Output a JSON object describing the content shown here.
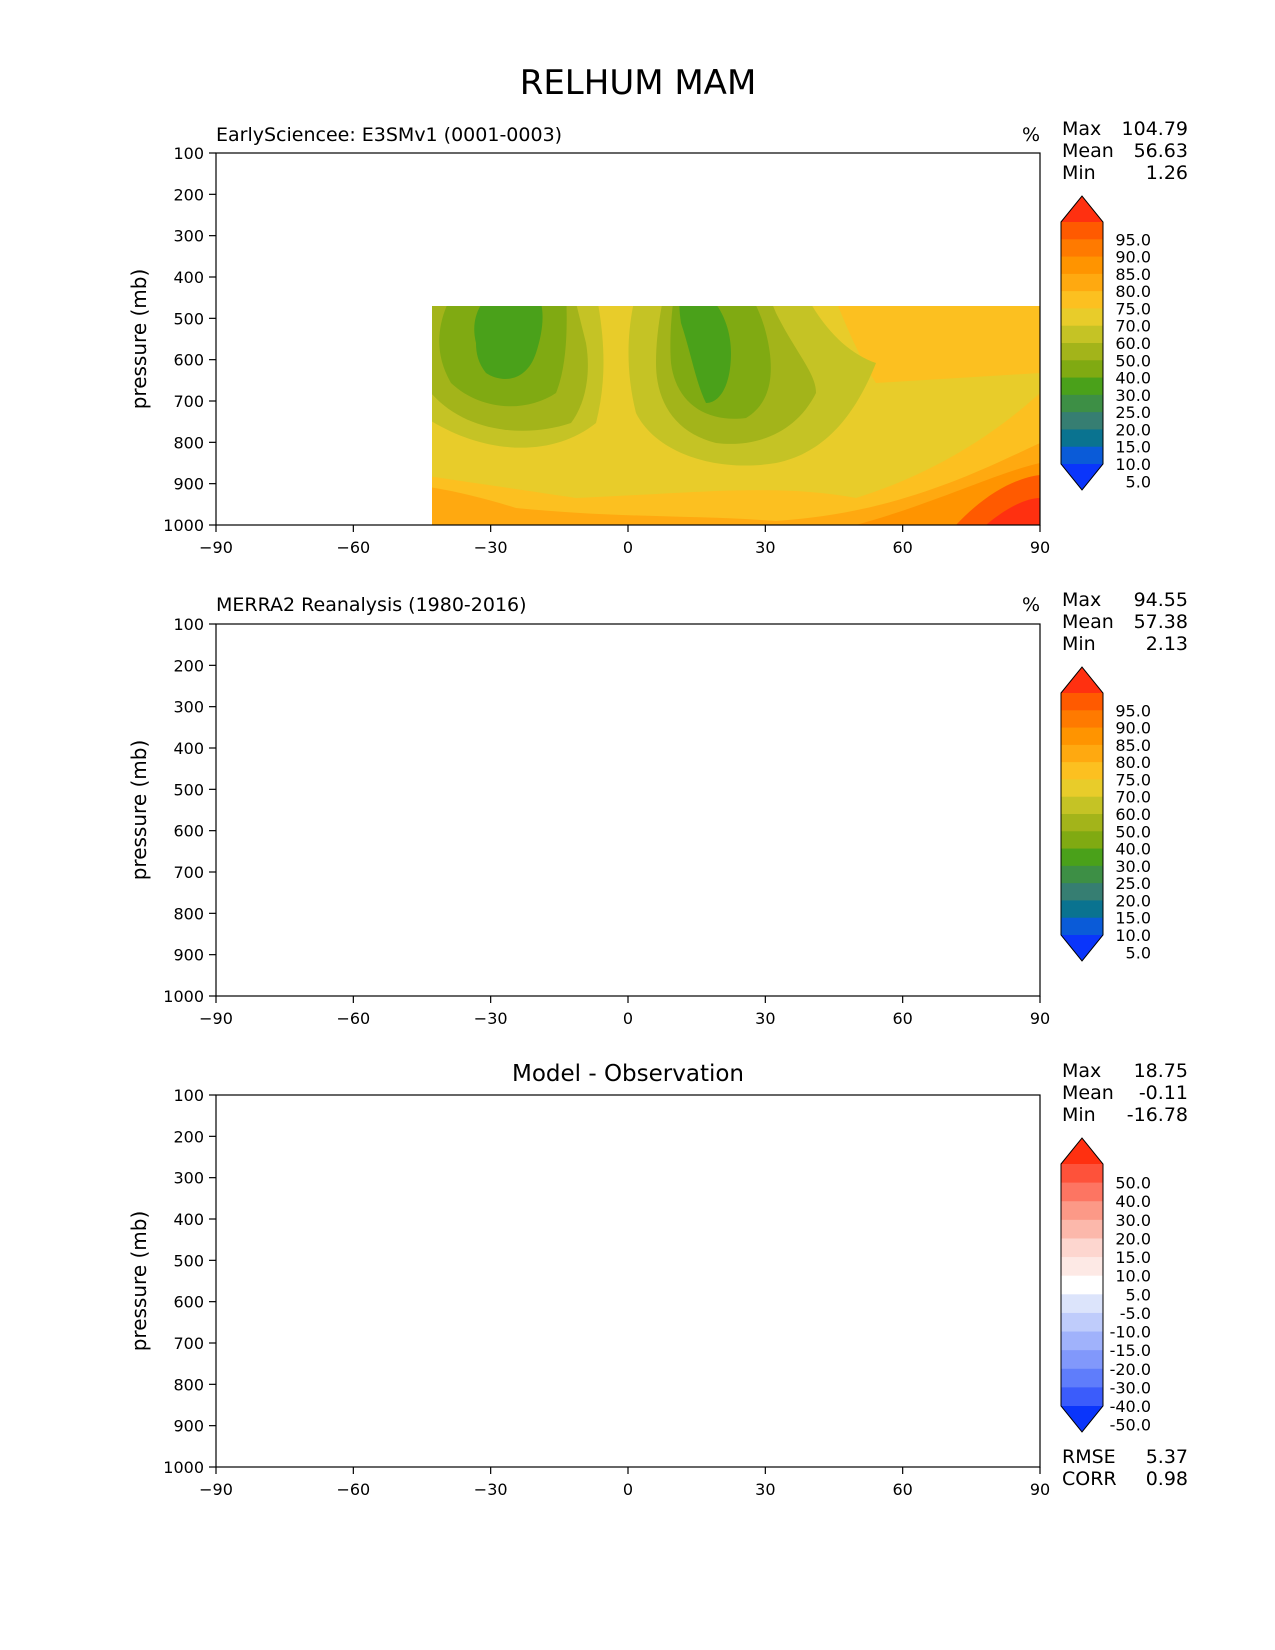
{
  "figure_title": "RELHUM MAM",
  "chart_data": [
    {
      "type": "heatmap",
      "title": "EarlySciencee: E3SMv1 (0001-0003)",
      "units": "%",
      "ylabel": "pressure (mb)",
      "xlabel": "",
      "xlim": [
        -90,
        90
      ],
      "ylim": [
        1000,
        100
      ],
      "x_ticks": [
        "−90",
        "−60",
        "−30",
        "0",
        "30",
        "60",
        "90"
      ],
      "y_ticks": [
        "100",
        "200",
        "300",
        "400",
        "500",
        "600",
        "700",
        "800",
        "900",
        "1000"
      ],
      "stats": [
        {
          "label": "Max",
          "value": "104.79"
        },
        {
          "label": "Mean",
          "value": "56.63"
        },
        {
          "label": "Min",
          "value": "1.26"
        }
      ],
      "colorbar": {
        "labels": [
          "95.0",
          "90.0",
          "85.0",
          "80.0",
          "75.0",
          "70.0",
          "60.0",
          "50.0",
          "40.0",
          "30.0",
          "25.0",
          "20.0",
          "15.0",
          "10.0",
          "5.0"
        ],
        "colors": [
          "#ff3010",
          "#ff5a00",
          "#ff7a00",
          "#ff9400",
          "#ffa910",
          "#fcc020",
          "#e8cc2a",
          "#c5c325",
          "#a3b41a",
          "#80aa12",
          "#4aa11a",
          "#3d8f45",
          "#367e72",
          "#0a7390",
          "#0a5bd8",
          "#0a35fb"
        ]
      },
      "missing_regions": [
        "below 650 mb near 90S",
        "below 870 mb from 87S to 55S"
      ]
    },
    {
      "type": "heatmap",
      "title": "MERRA2 Reanalysis (1980-2016)",
      "units": "%",
      "ylabel": "pressure (mb)",
      "xlabel": "",
      "xlim": [
        -90,
        90
      ],
      "ylim": [
        1000,
        100
      ],
      "x_ticks": [
        "−90",
        "−60",
        "−30",
        "0",
        "30",
        "60",
        "90"
      ],
      "y_ticks": [
        "100",
        "200",
        "300",
        "400",
        "500",
        "600",
        "700",
        "800",
        "900",
        "1000"
      ],
      "stats": [
        {
          "label": "Max",
          "value": "94.55"
        },
        {
          "label": "Mean",
          "value": "57.38"
        },
        {
          "label": "Min",
          "value": "2.13"
        }
      ],
      "colorbar": {
        "labels": [
          "95.0",
          "90.0",
          "85.0",
          "80.0",
          "75.0",
          "70.0",
          "60.0",
          "50.0",
          "40.0",
          "30.0",
          "25.0",
          "20.0",
          "15.0",
          "10.0",
          "5.0"
        ],
        "colors": [
          "#ff3010",
          "#ff5a00",
          "#ff7a00",
          "#ff9400",
          "#ffa910",
          "#fcc020",
          "#e8cc2a",
          "#c5c325",
          "#a3b41a",
          "#80aa12",
          "#4aa11a",
          "#3d8f45",
          "#367e72",
          "#0a7390",
          "#0a5bd8",
          "#0a35fb"
        ]
      },
      "missing_regions": [
        "below 650 mb near 90S"
      ]
    },
    {
      "type": "heatmap",
      "title": "Model - Observation",
      "units": "",
      "ylabel": "pressure (mb)",
      "xlabel": "",
      "xlim": [
        -90,
        90
      ],
      "ylim": [
        1000,
        100
      ],
      "x_ticks": [
        "−90",
        "−60",
        "−30",
        "0",
        "30",
        "60",
        "90"
      ],
      "y_ticks": [
        "100",
        "200",
        "300",
        "400",
        "500",
        "600",
        "700",
        "800",
        "900",
        "1000"
      ],
      "stats": [
        {
          "label": "Max",
          "value": "18.75"
        },
        {
          "label": "Mean",
          "value": "-0.11"
        },
        {
          "label": "Min",
          "value": "-16.78"
        }
      ],
      "colorbar": {
        "labels": [
          "50.0",
          "40.0",
          "30.0",
          "20.0",
          "15.0",
          "10.0",
          "5.0",
          "-5.0",
          "-10.0",
          "-15.0",
          "-20.0",
          "-30.0",
          "-40.0",
          "-50.0"
        ],
        "colors": [
          "#ff3010",
          "#fe523a",
          "#fd7562",
          "#fc9987",
          "#fcb8ab",
          "#fdd6cf",
          "#fde9e5",
          "#ffffff",
          "#dce4fb",
          "#bfccfb",
          "#a0b2fb",
          "#8198fb",
          "#5f7dfb",
          "#3b5cfb",
          "#0a35fb"
        ]
      },
      "metrics": [
        {
          "label": "RMSE",
          "value": "5.37"
        },
        {
          "label": "CORR",
          "value": "0.98"
        }
      ]
    }
  ]
}
